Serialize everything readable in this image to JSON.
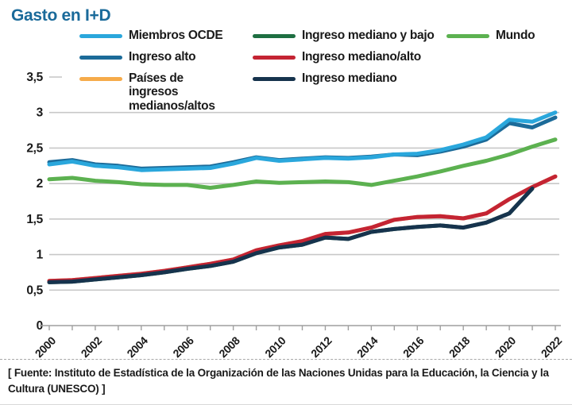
{
  "header": {
    "title": "Gasto en I+D"
  },
  "legend": {
    "columns": [
      {
        "items": [
          {
            "id": "miembros_ocde",
            "label": "Miembros OCDE"
          },
          {
            "id": "ingreso_alto",
            "label": "Ingreso alto"
          },
          {
            "id": "paises_medianos_altos",
            "label": "Países de ingresos medianos/altos"
          }
        ]
      },
      {
        "items": [
          {
            "id": "ingreso_mediano_y_bajo",
            "label": "Ingreso mediano y bajo"
          },
          {
            "id": "ingreso_mediano_alto",
            "label": "Ingreso mediano/alto"
          },
          {
            "id": "ingreso_mediano",
            "label": "Ingreso mediano"
          }
        ]
      },
      {
        "items": [
          {
            "id": "mundo",
            "label": "Mundo"
          }
        ]
      }
    ]
  },
  "chart_data": {
    "type": "line",
    "title": "Gasto en I+D",
    "xlabel": "",
    "ylabel": "",
    "grid": "horizontal",
    "legend_position": "top",
    "ylim": [
      0,
      3.5
    ],
    "yticks": [
      {
        "value": 0,
        "label": "0"
      },
      {
        "value": 0.5,
        "label": "0,5"
      },
      {
        "value": 1,
        "label": "1"
      },
      {
        "value": 1.5,
        "label": "1,5"
      },
      {
        "value": 2,
        "label": "2"
      },
      {
        "value": 2.5,
        "label": "2,5"
      },
      {
        "value": 3,
        "label": "3"
      },
      {
        "value": 3.5,
        "label": "3,5"
      }
    ],
    "x": [
      2000,
      2001,
      2002,
      2003,
      2004,
      2005,
      2006,
      2007,
      2008,
      2009,
      2010,
      2011,
      2012,
      2013,
      2014,
      2015,
      2016,
      2017,
      2018,
      2019,
      2020,
      2021,
      2022
    ],
    "xtick_label_every": 2,
    "series": [
      {
        "id": "paises_medianos_altos",
        "name": "Países de ingresos medianos/altos",
        "color": "#f6ab4a",
        "values": [
          0.63,
          0.64,
          0.67,
          0.7,
          0.73,
          0.77,
          0.82,
          0.87,
          0.93,
          1.06,
          1.13,
          1.19,
          1.29,
          1.31,
          1.38,
          1.49,
          1.53,
          1.54,
          1.51,
          1.58,
          1.78,
          1.95,
          2.1
        ]
      },
      {
        "id": "ingreso_mediano_y_bajo",
        "name": "Ingreso mediano y bajo",
        "color": "#1e6f42",
        "values": [
          0.61,
          0.62,
          0.65,
          0.68,
          0.71,
          0.75,
          0.8,
          0.84,
          0.9,
          1.02,
          1.1,
          1.14,
          1.24,
          1.22,
          1.32,
          1.36,
          1.39,
          1.41,
          1.38,
          1.45,
          1.58,
          1.93,
          null
        ]
      },
      {
        "id": "ingreso_alto",
        "name": "Ingreso alto",
        "color": "#1c6b99",
        "values": [
          2.3,
          2.33,
          2.27,
          2.25,
          2.21,
          2.22,
          2.23,
          2.24,
          2.3,
          2.37,
          2.33,
          2.35,
          2.37,
          2.36,
          2.38,
          2.41,
          2.4,
          2.45,
          2.52,
          2.62,
          2.85,
          2.79,
          2.93
        ]
      },
      {
        "id": "miembros_ocde",
        "name": "Miembros OCDE",
        "color": "#2aa7dc",
        "values": [
          2.27,
          2.31,
          2.25,
          2.23,
          2.19,
          2.2,
          2.21,
          2.22,
          2.28,
          2.36,
          2.32,
          2.34,
          2.36,
          2.35,
          2.37,
          2.41,
          2.42,
          2.47,
          2.55,
          2.65,
          2.9,
          2.87,
          3.0
        ]
      },
      {
        "id": "mundo",
        "name": "Mundo",
        "color": "#5cb150",
        "values": [
          2.06,
          2.08,
          2.04,
          2.02,
          1.99,
          1.98,
          1.98,
          1.94,
          1.98,
          2.03,
          2.01,
          2.02,
          2.03,
          2.02,
          1.98,
          2.04,
          2.1,
          2.17,
          2.25,
          2.32,
          2.41,
          2.52,
          2.62
        ]
      },
      {
        "id": "ingreso_mediano_alto",
        "name": "Ingreso mediano/alto",
        "color": "#c42433",
        "values": [
          0.63,
          0.64,
          0.67,
          0.7,
          0.73,
          0.77,
          0.82,
          0.87,
          0.93,
          1.06,
          1.13,
          1.19,
          1.29,
          1.31,
          1.38,
          1.49,
          1.53,
          1.54,
          1.51,
          1.58,
          1.78,
          1.95,
          2.1
        ]
      },
      {
        "id": "ingreso_mediano",
        "name": "Ingreso mediano",
        "color": "#16334d",
        "values": [
          0.61,
          0.62,
          0.65,
          0.68,
          0.71,
          0.75,
          0.8,
          0.84,
          0.9,
          1.02,
          1.1,
          1.14,
          1.24,
          1.22,
          1.32,
          1.36,
          1.39,
          1.41,
          1.38,
          1.45,
          1.58,
          1.93,
          null
        ]
      }
    ]
  },
  "footer": {
    "source": "[ Fuente: Instituto de Estadística de la Organización de las Naciones Unidas para la Educación, la Ciencia y la Cultura (UNESCO) ]"
  },
  "colors": {
    "title": "#1a6a9a",
    "gridline": "#c8c8c8",
    "axis": "#9f9f9f",
    "text": "#1a1a1a"
  }
}
